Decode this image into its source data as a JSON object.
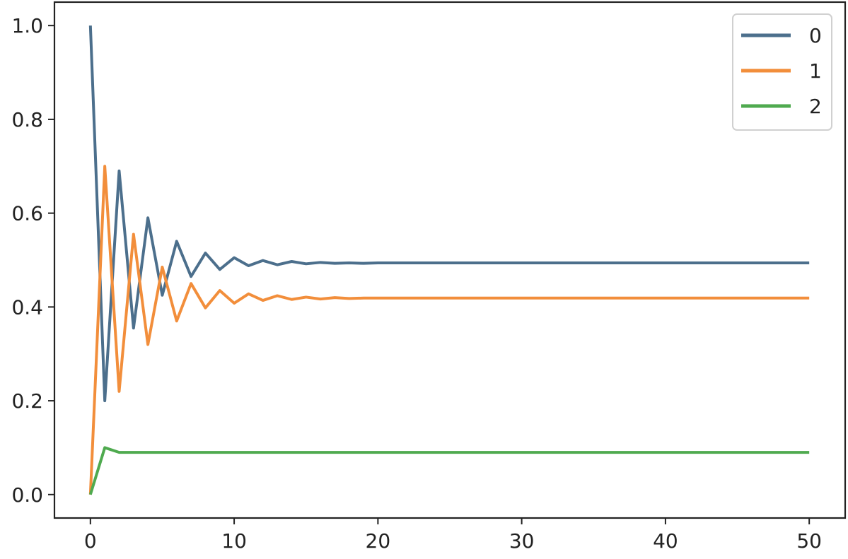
{
  "chart_data": {
    "type": "line",
    "title": "",
    "xlabel": "",
    "ylabel": "",
    "xlim": [
      -2.5,
      52.5
    ],
    "ylim": [
      -0.05,
      1.05
    ],
    "x_ticks": [
      0,
      10,
      20,
      30,
      40,
      50
    ],
    "x_tick_labels": [
      "0",
      "10",
      "20",
      "30",
      "40",
      "50"
    ],
    "y_ticks": [
      0.0,
      0.2,
      0.4,
      0.6,
      0.8,
      1.0
    ],
    "y_tick_labels": [
      "0.0",
      "0.2",
      "0.4",
      "0.6",
      "0.8",
      "1.0"
    ],
    "grid": false,
    "legend_position": "top-right",
    "x": [
      0,
      1,
      2,
      3,
      4,
      5,
      6,
      7,
      8,
      9,
      10,
      11,
      12,
      13,
      14,
      15,
      16,
      17,
      18,
      19,
      20,
      21,
      22,
      23,
      24,
      25,
      26,
      27,
      28,
      29,
      30,
      31,
      32,
      33,
      34,
      35,
      36,
      37,
      38,
      39,
      40,
      41,
      42,
      43,
      44,
      45,
      46,
      47,
      48,
      49,
      50
    ],
    "series": [
      {
        "name": "0",
        "color": "#4c6f8c",
        "values": [
          1.0,
          0.2,
          0.69,
          0.355,
          0.59,
          0.425,
          0.54,
          0.465,
          0.515,
          0.48,
          0.505,
          0.488,
          0.499,
          0.49,
          0.497,
          0.492,
          0.495,
          0.493,
          0.494,
          0.493,
          0.494,
          0.494,
          0.494,
          0.494,
          0.494,
          0.494,
          0.494,
          0.494,
          0.494,
          0.494,
          0.494,
          0.494,
          0.494,
          0.494,
          0.494,
          0.494,
          0.494,
          0.494,
          0.494,
          0.494,
          0.494,
          0.494,
          0.494,
          0.494,
          0.494,
          0.494,
          0.494,
          0.494,
          0.494,
          0.494,
          0.494
        ]
      },
      {
        "name": "1",
        "color": "#f28e3b",
        "values": [
          0.0,
          0.7,
          0.22,
          0.555,
          0.32,
          0.485,
          0.37,
          0.45,
          0.398,
          0.435,
          0.408,
          0.428,
          0.414,
          0.424,
          0.416,
          0.421,
          0.417,
          0.42,
          0.418,
          0.419,
          0.419,
          0.419,
          0.419,
          0.419,
          0.419,
          0.419,
          0.419,
          0.419,
          0.419,
          0.419,
          0.419,
          0.419,
          0.419,
          0.419,
          0.419,
          0.419,
          0.419,
          0.419,
          0.419,
          0.419,
          0.419,
          0.419,
          0.419,
          0.419,
          0.419,
          0.419,
          0.419,
          0.419,
          0.419,
          0.419,
          0.419
        ]
      },
      {
        "name": "2",
        "color": "#4faa4f",
        "values": [
          0.0,
          0.1,
          0.09,
          0.09,
          0.09,
          0.09,
          0.09,
          0.09,
          0.09,
          0.09,
          0.09,
          0.09,
          0.09,
          0.09,
          0.09,
          0.09,
          0.09,
          0.09,
          0.09,
          0.09,
          0.09,
          0.09,
          0.09,
          0.09,
          0.09,
          0.09,
          0.09,
          0.09,
          0.09,
          0.09,
          0.09,
          0.09,
          0.09,
          0.09,
          0.09,
          0.09,
          0.09,
          0.09,
          0.09,
          0.09,
          0.09,
          0.09,
          0.09,
          0.09,
          0.09,
          0.09,
          0.09,
          0.09,
          0.09,
          0.09,
          0.09
        ]
      }
    ]
  }
}
